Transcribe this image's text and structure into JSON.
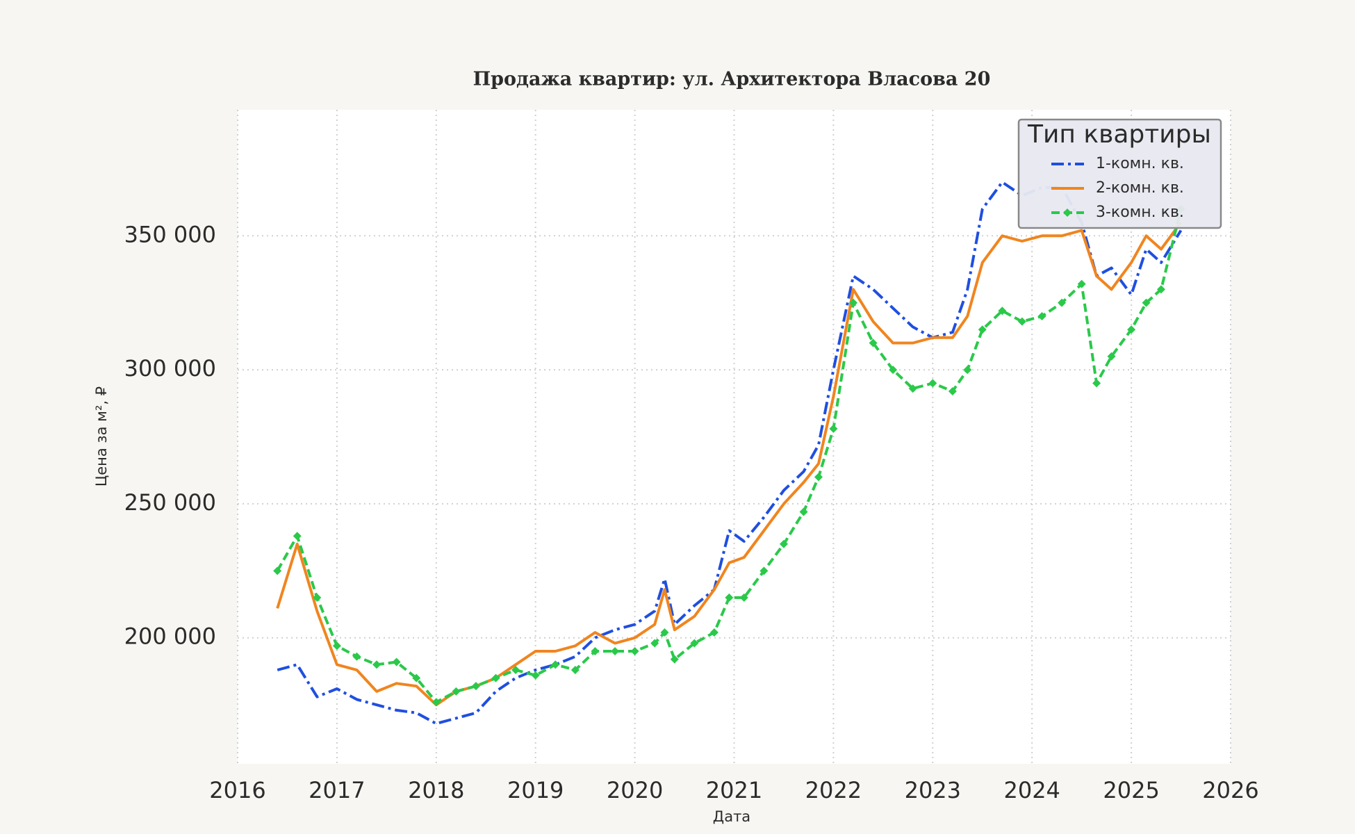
{
  "chart_data": {
    "type": "line",
    "title": "Продажа квартир: ул. Архитектора Власова 20",
    "x_label": "Дата",
    "y_label": "Цена за м², ₽",
    "legend_title": "Тип квартиры",
    "legend": "upper right",
    "grid": true,
    "x": [
      2016.4,
      2016.6,
      2016.8,
      2017.0,
      2017.2,
      2017.4,
      2017.6,
      2017.8,
      2018.0,
      2018.2,
      2018.4,
      2018.6,
      2018.8,
      2019.0,
      2019.2,
      2019.4,
      2019.6,
      2019.8,
      2020.0,
      2020.2,
      2020.3,
      2020.4,
      2020.6,
      2020.8,
      2020.95,
      2021.1,
      2021.3,
      2021.5,
      2021.7,
      2021.85,
      2022.0,
      2022.2,
      2022.4,
      2022.6,
      2022.8,
      2023.0,
      2023.2,
      2023.35,
      2023.5,
      2023.7,
      2023.9,
      2024.1,
      2024.3,
      2024.5,
      2024.65,
      2024.8,
      2025.0,
      2025.15,
      2025.3,
      2025.5
    ],
    "series": [
      {
        "name": "1-комн. кв.",
        "color": "#1f4fe0",
        "dash": "dashdot",
        "values": [
          188000,
          190000,
          178000,
          181000,
          177000,
          175000,
          173000,
          172000,
          168000,
          170000,
          172000,
          180000,
          185000,
          188000,
          190000,
          193000,
          200000,
          203000,
          205000,
          210000,
          222000,
          205000,
          212000,
          218000,
          240000,
          236000,
          245000,
          255000,
          262000,
          272000,
          300000,
          335000,
          330000,
          323000,
          316000,
          312000,
          314000,
          330000,
          360000,
          370000,
          365000,
          368000,
          368000,
          355000,
          335000,
          338000,
          328000,
          345000,
          340000,
          352000
        ]
      },
      {
        "name": "2-комн. кв.",
        "color": "#f0851f",
        "dash": "solid",
        "values": [
          211000,
          235000,
          210000,
          190000,
          188000,
          180000,
          183000,
          182000,
          175000,
          180000,
          182000,
          185000,
          190000,
          195000,
          195000,
          197000,
          202000,
          198000,
          200000,
          205000,
          218000,
          203000,
          208000,
          218000,
          228000,
          230000,
          240000,
          250000,
          258000,
          265000,
          290000,
          330000,
          318000,
          310000,
          310000,
          312000,
          312000,
          320000,
          340000,
          350000,
          348000,
          350000,
          350000,
          352000,
          335000,
          330000,
          340000,
          350000,
          345000,
          355000
        ]
      },
      {
        "name": "3-комн. кв.",
        "color": "#2ac94a",
        "dash": "dashed",
        "marker": "diamond",
        "values": [
          225000,
          238000,
          215000,
          197000,
          193000,
          190000,
          191000,
          185000,
          176000,
          180000,
          182000,
          185000,
          188000,
          186000,
          190000,
          188000,
          195000,
          195000,
          195000,
          198000,
          202000,
          192000,
          198000,
          202000,
          215000,
          215000,
          225000,
          235000,
          247000,
          260000,
          278000,
          325000,
          310000,
          300000,
          293000,
          295000,
          292000,
          300000,
          315000,
          322000,
          318000,
          320000,
          325000,
          332000,
          295000,
          305000,
          315000,
          325000,
          330000,
          360000
        ]
      }
    ],
    "xlim": [
      2016,
      2026
    ],
    "xticks": [
      2016,
      2017,
      2018,
      2019,
      2020,
      2021,
      2022,
      2023,
      2024,
      2025,
      2026
    ],
    "ylim": [
      153000,
      397000
    ],
    "yticks": [
      {
        "value": 200000,
        "label": "200 000"
      },
      {
        "value": 250000,
        "label": "250 000"
      },
      {
        "value": 300000,
        "label": "300 000"
      },
      {
        "value": 350000,
        "label": "350 000"
      }
    ]
  }
}
